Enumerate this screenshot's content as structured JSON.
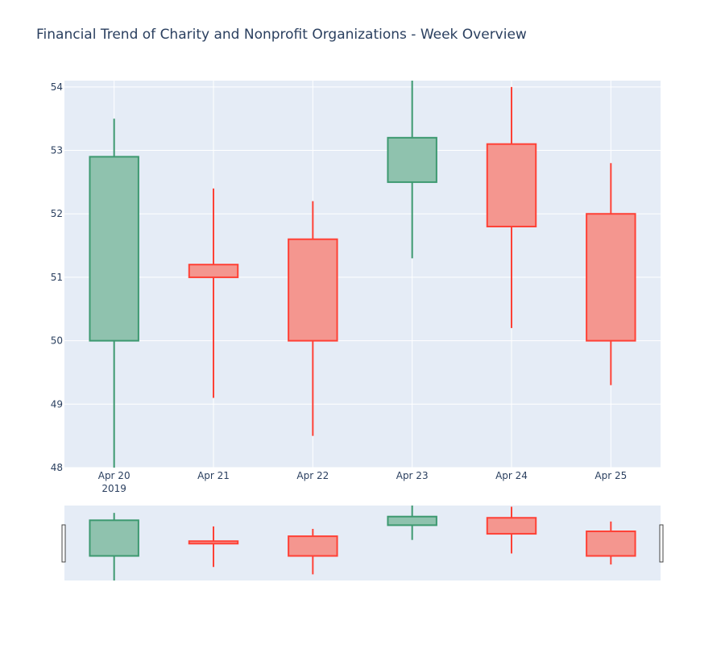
{
  "chart_data": {
    "type": "candlestick",
    "title": "Financial Trend of Charity and Nonprofit Organizations - Week Overview",
    "x": [
      "Apr 20",
      "Apr 21",
      "Apr 22",
      "Apr 23",
      "Apr 24",
      "Apr 25"
    ],
    "x_year_label": "2019",
    "open": [
      50.0,
      51.2,
      51.6,
      52.5,
      53.1,
      52.0
    ],
    "high": [
      53.5,
      52.4,
      52.2,
      54.1,
      54.0,
      52.8
    ],
    "low": [
      48.0,
      49.1,
      48.5,
      51.3,
      50.2,
      49.3
    ],
    "close": [
      52.9,
      51.0,
      50.0,
      53.2,
      51.8,
      50.0
    ],
    "ylim": [
      48,
      54.1
    ],
    "yticks": [
      48,
      49,
      50,
      51,
      52,
      53,
      54
    ],
    "grid": true,
    "legend": false,
    "rangeslider": true,
    "colors": {
      "increasing_line": "#3d9970",
      "increasing_fill": "#8fc2ae",
      "decreasing_line": "#ff4136",
      "decreasing_fill": "#f4968f",
      "plot_bg": "#e5ecf6",
      "grid": "#ffffff",
      "text": "#2a3f5f"
    }
  }
}
